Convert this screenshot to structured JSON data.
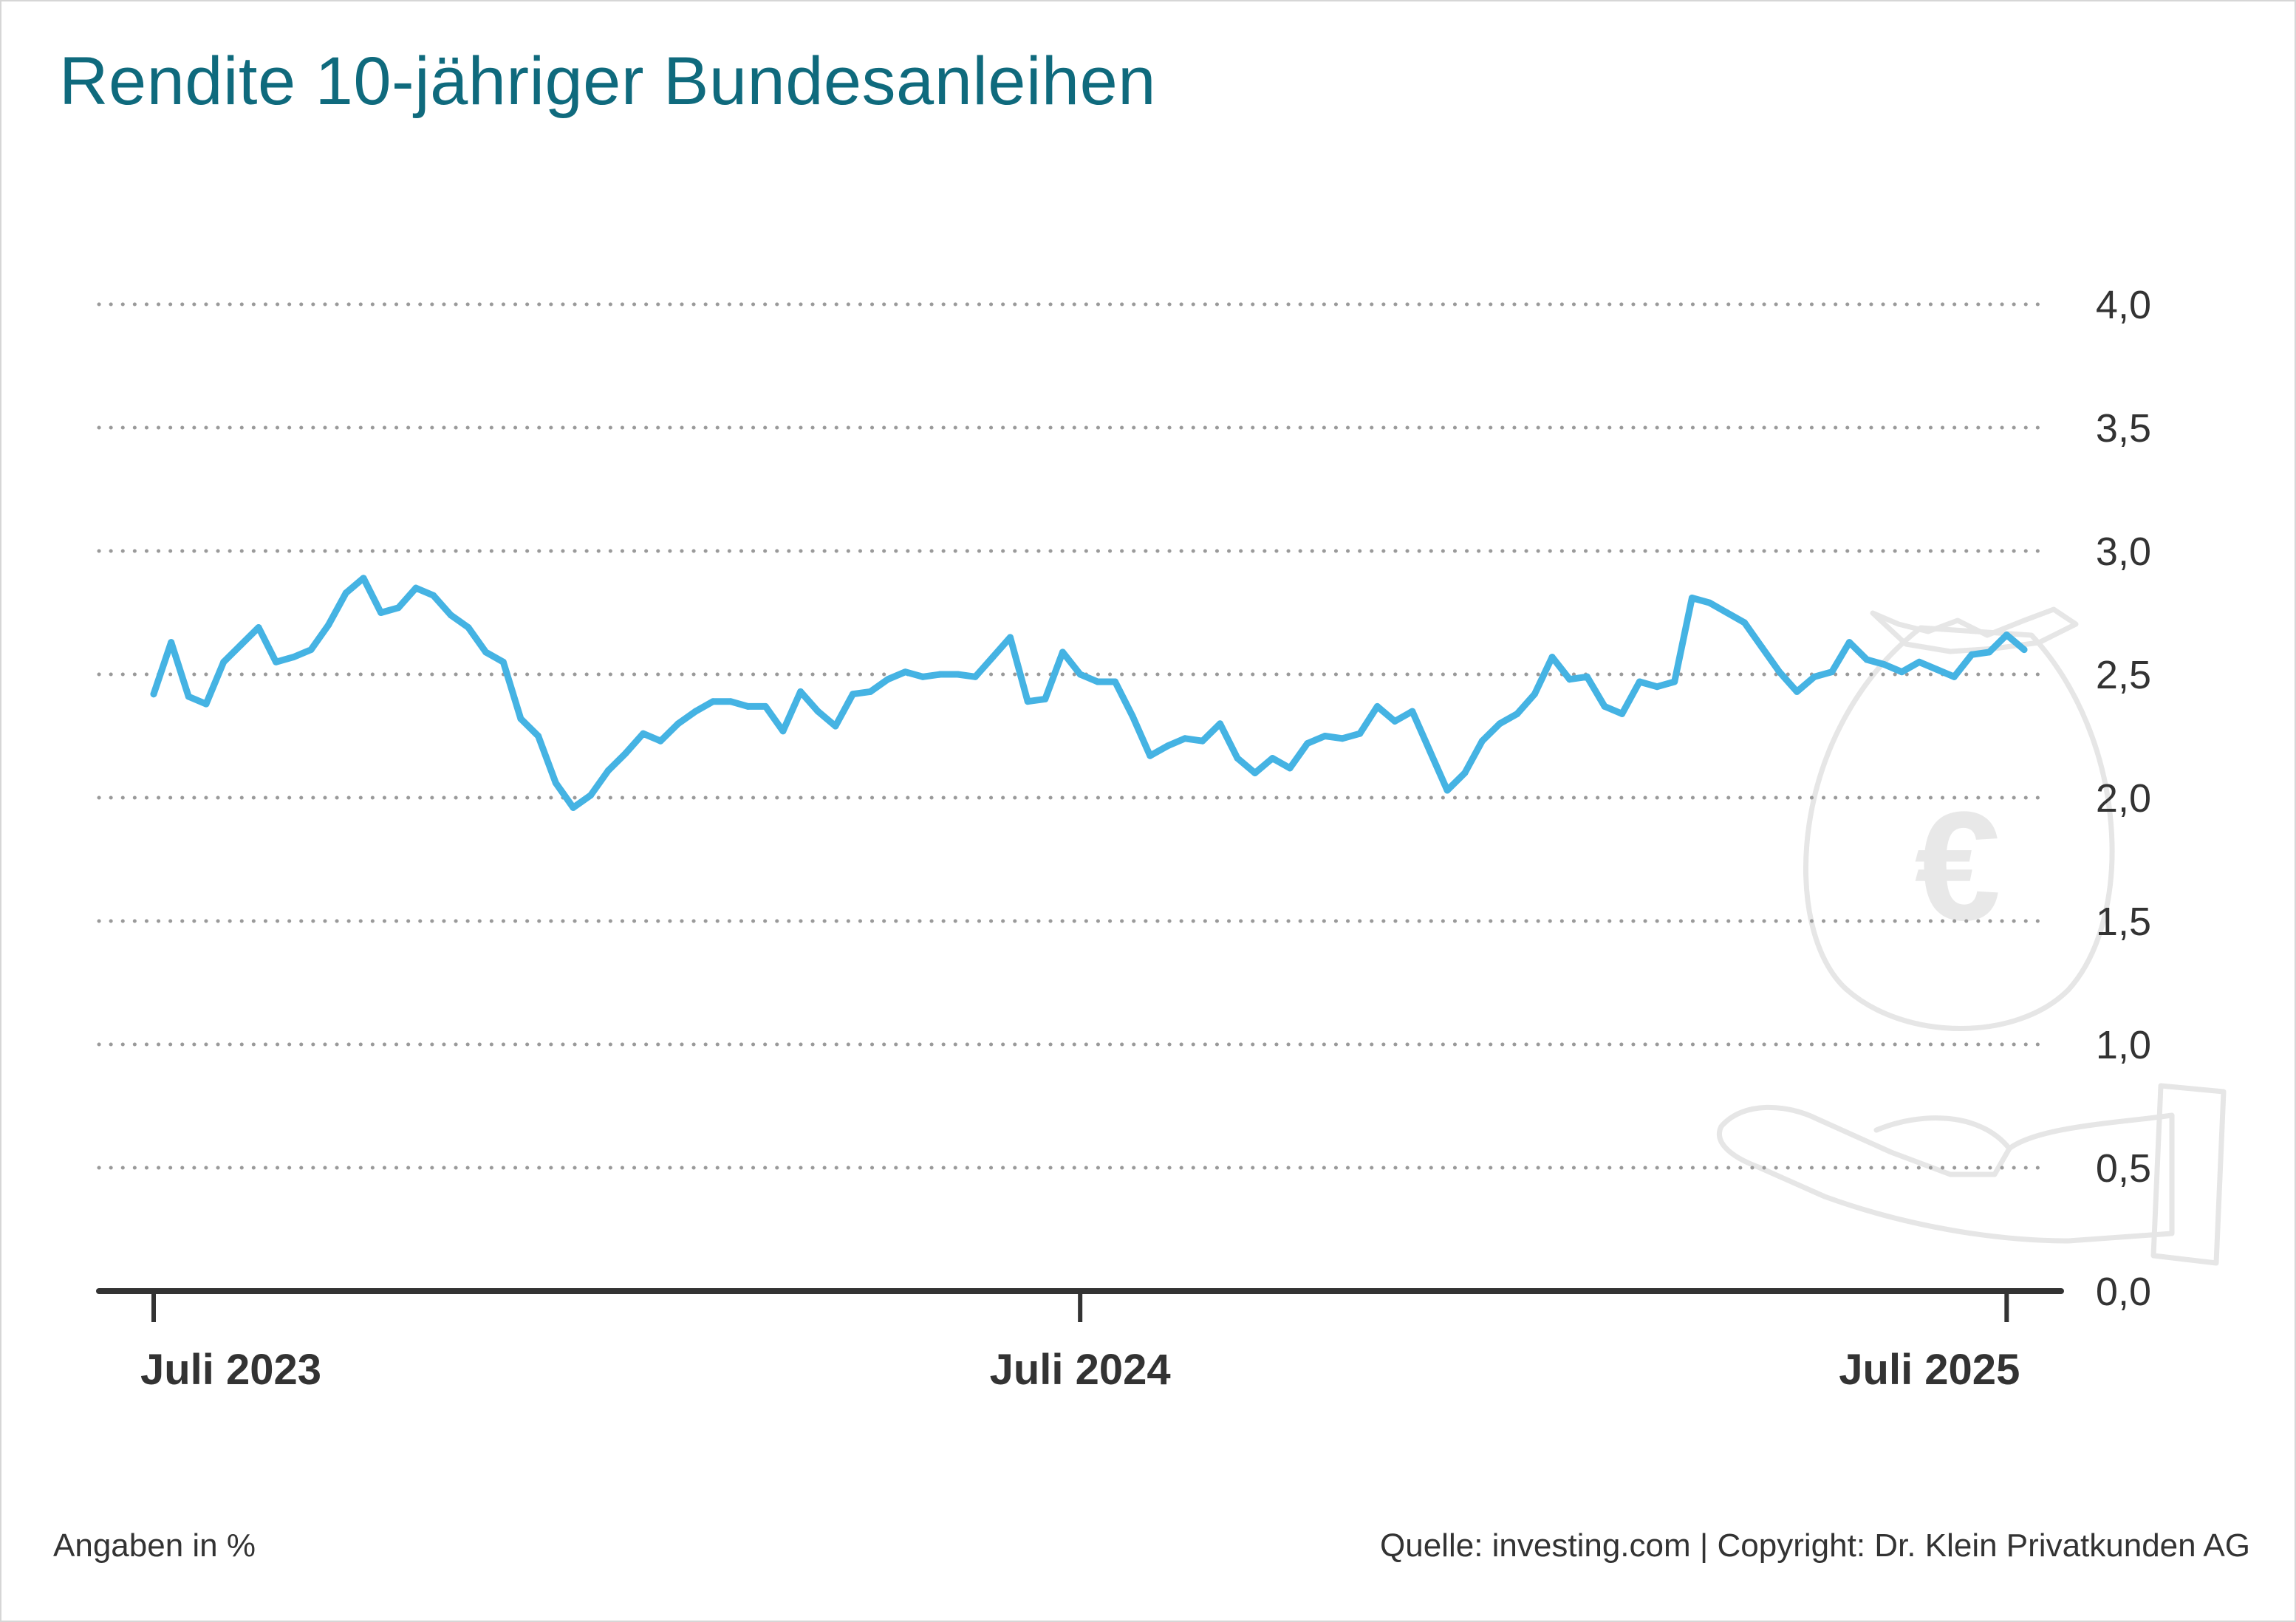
{
  "title": "Rendite 10-jähriger Bundesanleihen",
  "footer": {
    "note": "Angaben in %",
    "source": "Quelle: investing.com | Copyright: Dr. Klein Privatkunden AG"
  },
  "decoration": {
    "illustration": "money-bag-in-hand-icon",
    "bag_symbol": "€"
  },
  "colors": {
    "title": "#0f6a7d",
    "line": "#45b3e3",
    "grid": "#9a9a9a",
    "axis": "#333333",
    "illustration": "#e6e6e6"
  },
  "chart_data": {
    "type": "line",
    "title": "Rendite 10-jähriger Bundesanleihen",
    "xlabel": "",
    "ylabel": "",
    "ylim": [
      0,
      4
    ],
    "y_ticks": [
      {
        "value": 4.0,
        "label": "4,0"
      },
      {
        "value": 3.5,
        "label": "3,5"
      },
      {
        "value": 3.0,
        "label": "3,0"
      },
      {
        "value": 2.5,
        "label": "2,5"
      },
      {
        "value": 2.0,
        "label": "2,0"
      },
      {
        "value": 1.5,
        "label": "1,5"
      },
      {
        "value": 1.0,
        "label": "1,0"
      },
      {
        "value": 0.5,
        "label": "0,5"
      },
      {
        "value": 0.0,
        "label": "0,0"
      }
    ],
    "x_ticks": [
      {
        "label": "Juli 2023",
        "index": 0
      },
      {
        "label": "Juli 2024",
        "index": 53
      },
      {
        "label": "Juli 2025",
        "index": 106
      }
    ],
    "grid": "dotted horizontal",
    "legend": "none",
    "series": [
      {
        "values": [
          2.42,
          2.63,
          2.41,
          2.38,
          2.55,
          2.62,
          2.69,
          2.55,
          2.57,
          2.6,
          2.7,
          2.83,
          2.89,
          2.75,
          2.77,
          2.85,
          2.82,
          2.74,
          2.69,
          2.59,
          2.55,
          2.32,
          2.25,
          2.06,
          1.96,
          2.01,
          2.11,
          2.18,
          2.26,
          2.23,
          2.3,
          2.35,
          2.39,
          2.39,
          2.37,
          2.37,
          2.27,
          2.43,
          2.35,
          2.29,
          2.42,
          2.43,
          2.48,
          2.51,
          2.49,
          2.5,
          2.5,
          2.49,
          2.57,
          2.65,
          2.39,
          2.4,
          2.59,
          2.5,
          2.47,
          2.47,
          2.33,
          2.17,
          2.21,
          2.24,
          2.23,
          2.3,
          2.16,
          2.1,
          2.16,
          2.12,
          2.22,
          2.25,
          2.24,
          2.26,
          2.37,
          2.31,
          2.35,
          2.19,
          2.03,
          2.1,
          2.23,
          2.3,
          2.34,
          2.42,
          2.57,
          2.48,
          2.49,
          2.37,
          2.34,
          2.47,
          2.45,
          2.47,
          2.81,
          2.79,
          2.75,
          2.71,
          2.61,
          2.51,
          2.43,
          2.49,
          2.51,
          2.63,
          2.56,
          2.54,
          2.51,
          2.55,
          2.52,
          2.49,
          2.58,
          2.59,
          2.66,
          2.6
        ]
      }
    ]
  }
}
